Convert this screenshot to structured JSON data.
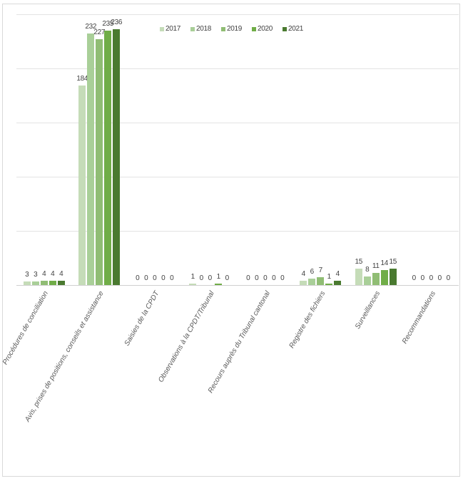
{
  "chart_data": {
    "type": "bar",
    "title": "",
    "xlabel": "",
    "ylabel": "",
    "ylim": [
      0,
      250
    ],
    "grid": true,
    "legend_position": "top-inside",
    "categories": [
      "Procédures de conciliation",
      "Avis, prises de positions, conseils et assistance",
      "Saisies de la CPDT",
      "Observations à la CPDT/Tribunal",
      "Recours auprès du Tribunal cantonal",
      "Registre des fichiers",
      "Surveillances",
      "Recommandations"
    ],
    "series": [
      {
        "name": "2017",
        "color": "#c5dcb8",
        "values": [
          3,
          184,
          0,
          1,
          0,
          4,
          15,
          0
        ]
      },
      {
        "name": "2018",
        "color": "#a9cf98",
        "values": [
          3,
          232,
          0,
          0,
          0,
          6,
          8,
          0
        ]
      },
      {
        "name": "2019",
        "color": "#90bd74",
        "values": [
          4,
          227,
          0,
          0,
          0,
          7,
          11,
          0
        ]
      },
      {
        "name": "2020",
        "color": "#70ad47",
        "values": [
          4,
          235,
          0,
          1,
          0,
          1,
          14,
          0
        ]
      },
      {
        "name": "2021",
        "color": "#4a7a30",
        "values": [
          4,
          236,
          0,
          0,
          0,
          4,
          15,
          0
        ]
      }
    ]
  }
}
